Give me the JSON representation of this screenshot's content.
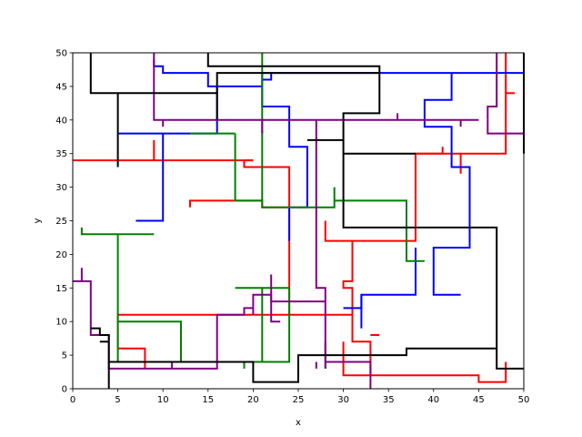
{
  "chart_data": {
    "type": "line",
    "title": "",
    "xlabel": "x",
    "ylabel": "y",
    "xlim": [
      0,
      50
    ],
    "ylim": [
      0,
      50
    ],
    "xticks": [
      "0",
      "5",
      "10",
      "15",
      "20",
      "25",
      "30",
      "35",
      "40",
      "45",
      "50"
    ],
    "yticks": [
      "0",
      "5",
      "10",
      "15",
      "20",
      "25",
      "30",
      "35",
      "40",
      "45",
      "50"
    ],
    "grid": false,
    "legend": "none",
    "series": [
      {
        "color": "#ff0000",
        "paths": [
          [
            [
              0,
              34
            ],
            [
              20,
              34
            ]
          ],
          [
            [
              9,
              37
            ],
            [
              9,
              34
            ]
          ],
          [
            [
              20,
              34
            ],
            [
              19,
              34
            ],
            [
              19,
              33
            ],
            [
              24,
              33
            ],
            [
              24,
              27
            ],
            [
              21,
              27
            ],
            [
              21,
              28
            ],
            [
              13,
              28
            ],
            [
              13,
              27
            ]
          ],
          [
            [
              24,
              27
            ],
            [
              24,
              11
            ],
            [
              5,
              11
            ],
            [
              5,
              6
            ],
            [
              8,
              6
            ],
            [
              8,
              3
            ]
          ],
          [
            [
              24,
              11
            ],
            [
              31,
              11
            ],
            [
              31,
              15
            ],
            [
              30,
              15
            ],
            [
              30,
              16
            ],
            [
              31,
              16
            ],
            [
              31,
              22
            ],
            [
              28,
              22
            ],
            [
              28,
              25
            ]
          ],
          [
            [
              31,
              22
            ],
            [
              38,
              22
            ],
            [
              38,
              35
            ],
            [
              48,
              35
            ],
            [
              48,
              50
            ]
          ],
          [
            [
              38,
              35
            ],
            [
              41,
              35
            ],
            [
              41,
              36
            ]
          ],
          [
            [
              43,
              35
            ],
            [
              43,
              32
            ]
          ],
          [
            [
              48,
              44
            ],
            [
              49,
              44
            ]
          ],
          [
            [
              31,
              11
            ],
            [
              31,
              7
            ],
            [
              33,
              7
            ],
            [
              33,
              2
            ],
            [
              30,
              2
            ],
            [
              30,
              7
            ]
          ],
          [
            [
              33,
              8
            ],
            [
              34,
              8
            ]
          ],
          [
            [
              33,
              2
            ],
            [
              45,
              2
            ],
            [
              45,
              1
            ],
            [
              48,
              1
            ],
            [
              48,
              4
            ]
          ]
        ]
      },
      {
        "color": "#0000ff",
        "paths": [
          [
            [
              7,
              25
            ],
            [
              10,
              25
            ],
            [
              10,
              38
            ],
            [
              5,
              38
            ],
            [
              16,
              38
            ],
            [
              16,
              45
            ],
            [
              21,
              45
            ],
            [
              21,
              47
            ],
            [
              22,
              47
            ],
            [
              22,
              46
            ],
            [
              21,
              46
            ],
            [
              21,
              42
            ],
            [
              24,
              42
            ],
            [
              24,
              36
            ],
            [
              26,
              36
            ],
            [
              26,
              27
            ],
            [
              24,
              27
            ],
            [
              24,
              22
            ]
          ],
          [
            [
              9,
              49
            ],
            [
              9,
              48
            ],
            [
              10,
              48
            ],
            [
              10,
              47
            ],
            [
              15,
              47
            ],
            [
              15,
              45
            ],
            [
              16,
              45
            ]
          ],
          [
            [
              22,
              47
            ],
            [
              50,
              47
            ],
            [
              50,
              48
            ]
          ],
          [
            [
              42,
              47
            ],
            [
              42,
              43
            ],
            [
              39,
              43
            ],
            [
              39,
              39
            ],
            [
              42,
              39
            ],
            [
              42,
              33
            ],
            [
              44,
              33
            ],
            [
              44,
              21
            ],
            [
              40,
              21
            ],
            [
              40,
              14
            ],
            [
              43,
              14
            ]
          ],
          [
            [
              38,
              21
            ],
            [
              38,
              14
            ],
            [
              32,
              14
            ],
            [
              32,
              9
            ]
          ],
          [
            [
              32,
              14
            ],
            [
              32,
              12
            ],
            [
              30,
              12
            ]
          ]
        ]
      },
      {
        "color": "#008000",
        "paths": [
          [
            [
              1,
              24
            ],
            [
              1,
              23
            ],
            [
              9,
              23
            ]
          ],
          [
            [
              5,
              23
            ],
            [
              5,
              10
            ],
            [
              12,
              10
            ],
            [
              12,
              4
            ],
            [
              24,
              4
            ],
            [
              24,
              15
            ],
            [
              18,
              15
            ]
          ],
          [
            [
              5,
              10
            ],
            [
              5,
              4
            ]
          ],
          [
            [
              21,
              4
            ],
            [
              21,
              15
            ]
          ],
          [
            [
              19,
              4
            ],
            [
              19,
              3
            ]
          ],
          [
            [
              18,
              38
            ],
            [
              13,
              38
            ]
          ],
          [
            [
              18,
              38
            ],
            [
              18,
              28
            ],
            [
              21,
              28
            ],
            [
              21,
              27
            ],
            [
              29,
              27
            ],
            [
              29,
              30
            ]
          ],
          [
            [
              21,
              28
            ],
            [
              21,
              50
            ]
          ],
          [
            [
              29,
              28
            ],
            [
              37,
              28
            ],
            [
              37,
              19
            ],
            [
              39,
              19
            ]
          ],
          [
            [
              28,
              7
            ],
            [
              28,
              3
            ]
          ]
        ]
      },
      {
        "color": "#800080",
        "paths": [
          [
            [
              0,
              16
            ],
            [
              2,
              16
            ],
            [
              2,
              8
            ],
            [
              4,
              8
            ],
            [
              4,
              3
            ],
            [
              16,
              3
            ],
            [
              16,
              11
            ],
            [
              19,
              11
            ],
            [
              19,
              12
            ],
            [
              20,
              12
            ],
            [
              20,
              14
            ],
            [
              22,
              14
            ],
            [
              22,
              13
            ],
            [
              28,
              13
            ],
            [
              28,
              3
            ]
          ],
          [
            [
              1,
              18
            ],
            [
              1,
              16
            ]
          ],
          [
            [
              11,
              3
            ],
            [
              11,
              4
            ]
          ],
          [
            [
              20,
              12
            ],
            [
              20,
              11
            ]
          ],
          [
            [
              22,
              17
            ],
            [
              22,
              10
            ],
            [
              23,
              10
            ]
          ],
          [
            [
              28,
              13
            ],
            [
              28,
              15
            ],
            [
              27,
              15
            ],
            [
              27,
              40
            ]
          ],
          [
            [
              9,
              50
            ],
            [
              9,
              40
            ],
            [
              21,
              40
            ],
            [
              45,
              40
            ]
          ],
          [
            [
              10,
              40
            ],
            [
              10,
              39
            ]
          ],
          [
            [
              21,
              40
            ],
            [
              21,
              38
            ]
          ],
          [
            [
              36,
              40
            ],
            [
              36,
              41
            ]
          ],
          [
            [
              43,
              40
            ],
            [
              43,
              39
            ]
          ],
          [
            [
              46,
              40
            ],
            [
              46,
              42
            ],
            [
              47,
              42
            ],
            [
              47,
              50
            ]
          ],
          [
            [
              46,
              40
            ],
            [
              46,
              38
            ],
            [
              50,
              38
            ]
          ],
          [
            [
              27,
              4
            ],
            [
              27,
              3
            ]
          ],
          [
            [
              28,
              4
            ],
            [
              33,
              4
            ],
            [
              33,
              0
            ]
          ]
        ]
      },
      {
        "color": "#000000",
        "paths": [
          [
            [
              2,
              50
            ],
            [
              2,
              44
            ],
            [
              16,
              44
            ],
            [
              16,
              40
            ]
          ],
          [
            [
              15,
              50
            ],
            [
              15,
              48
            ],
            [
              34,
              48
            ],
            [
              34,
              41
            ],
            [
              30,
              41
            ],
            [
              30,
              24
            ],
            [
              47,
              24
            ],
            [
              47,
              3
            ],
            [
              50,
              3
            ]
          ],
          [
            [
              16,
              44
            ],
            [
              16,
              47
            ],
            [
              34,
              47
            ]
          ],
          [
            [
              5,
              33
            ],
            [
              5,
              44
            ]
          ],
          [
            [
              30,
              35
            ],
            [
              38,
              35
            ]
          ],
          [
            [
              26,
              37
            ],
            [
              30,
              37
            ]
          ],
          [
            [
              2,
              9
            ],
            [
              3,
              9
            ],
            [
              3,
              8
            ],
            [
              4,
              8
            ],
            [
              4,
              0
            ]
          ],
          [
            [
              3,
              7
            ],
            [
              4,
              7
            ]
          ],
          [
            [
              4,
              4
            ],
            [
              20,
              4
            ],
            [
              20,
              1
            ],
            [
              25,
              1
            ],
            [
              25,
              5
            ],
            [
              37,
              5
            ],
            [
              37,
              6
            ],
            [
              47,
              6
            ]
          ],
          [
            [
              50,
              35
            ],
            [
              50,
              50
            ]
          ]
        ]
      }
    ]
  }
}
